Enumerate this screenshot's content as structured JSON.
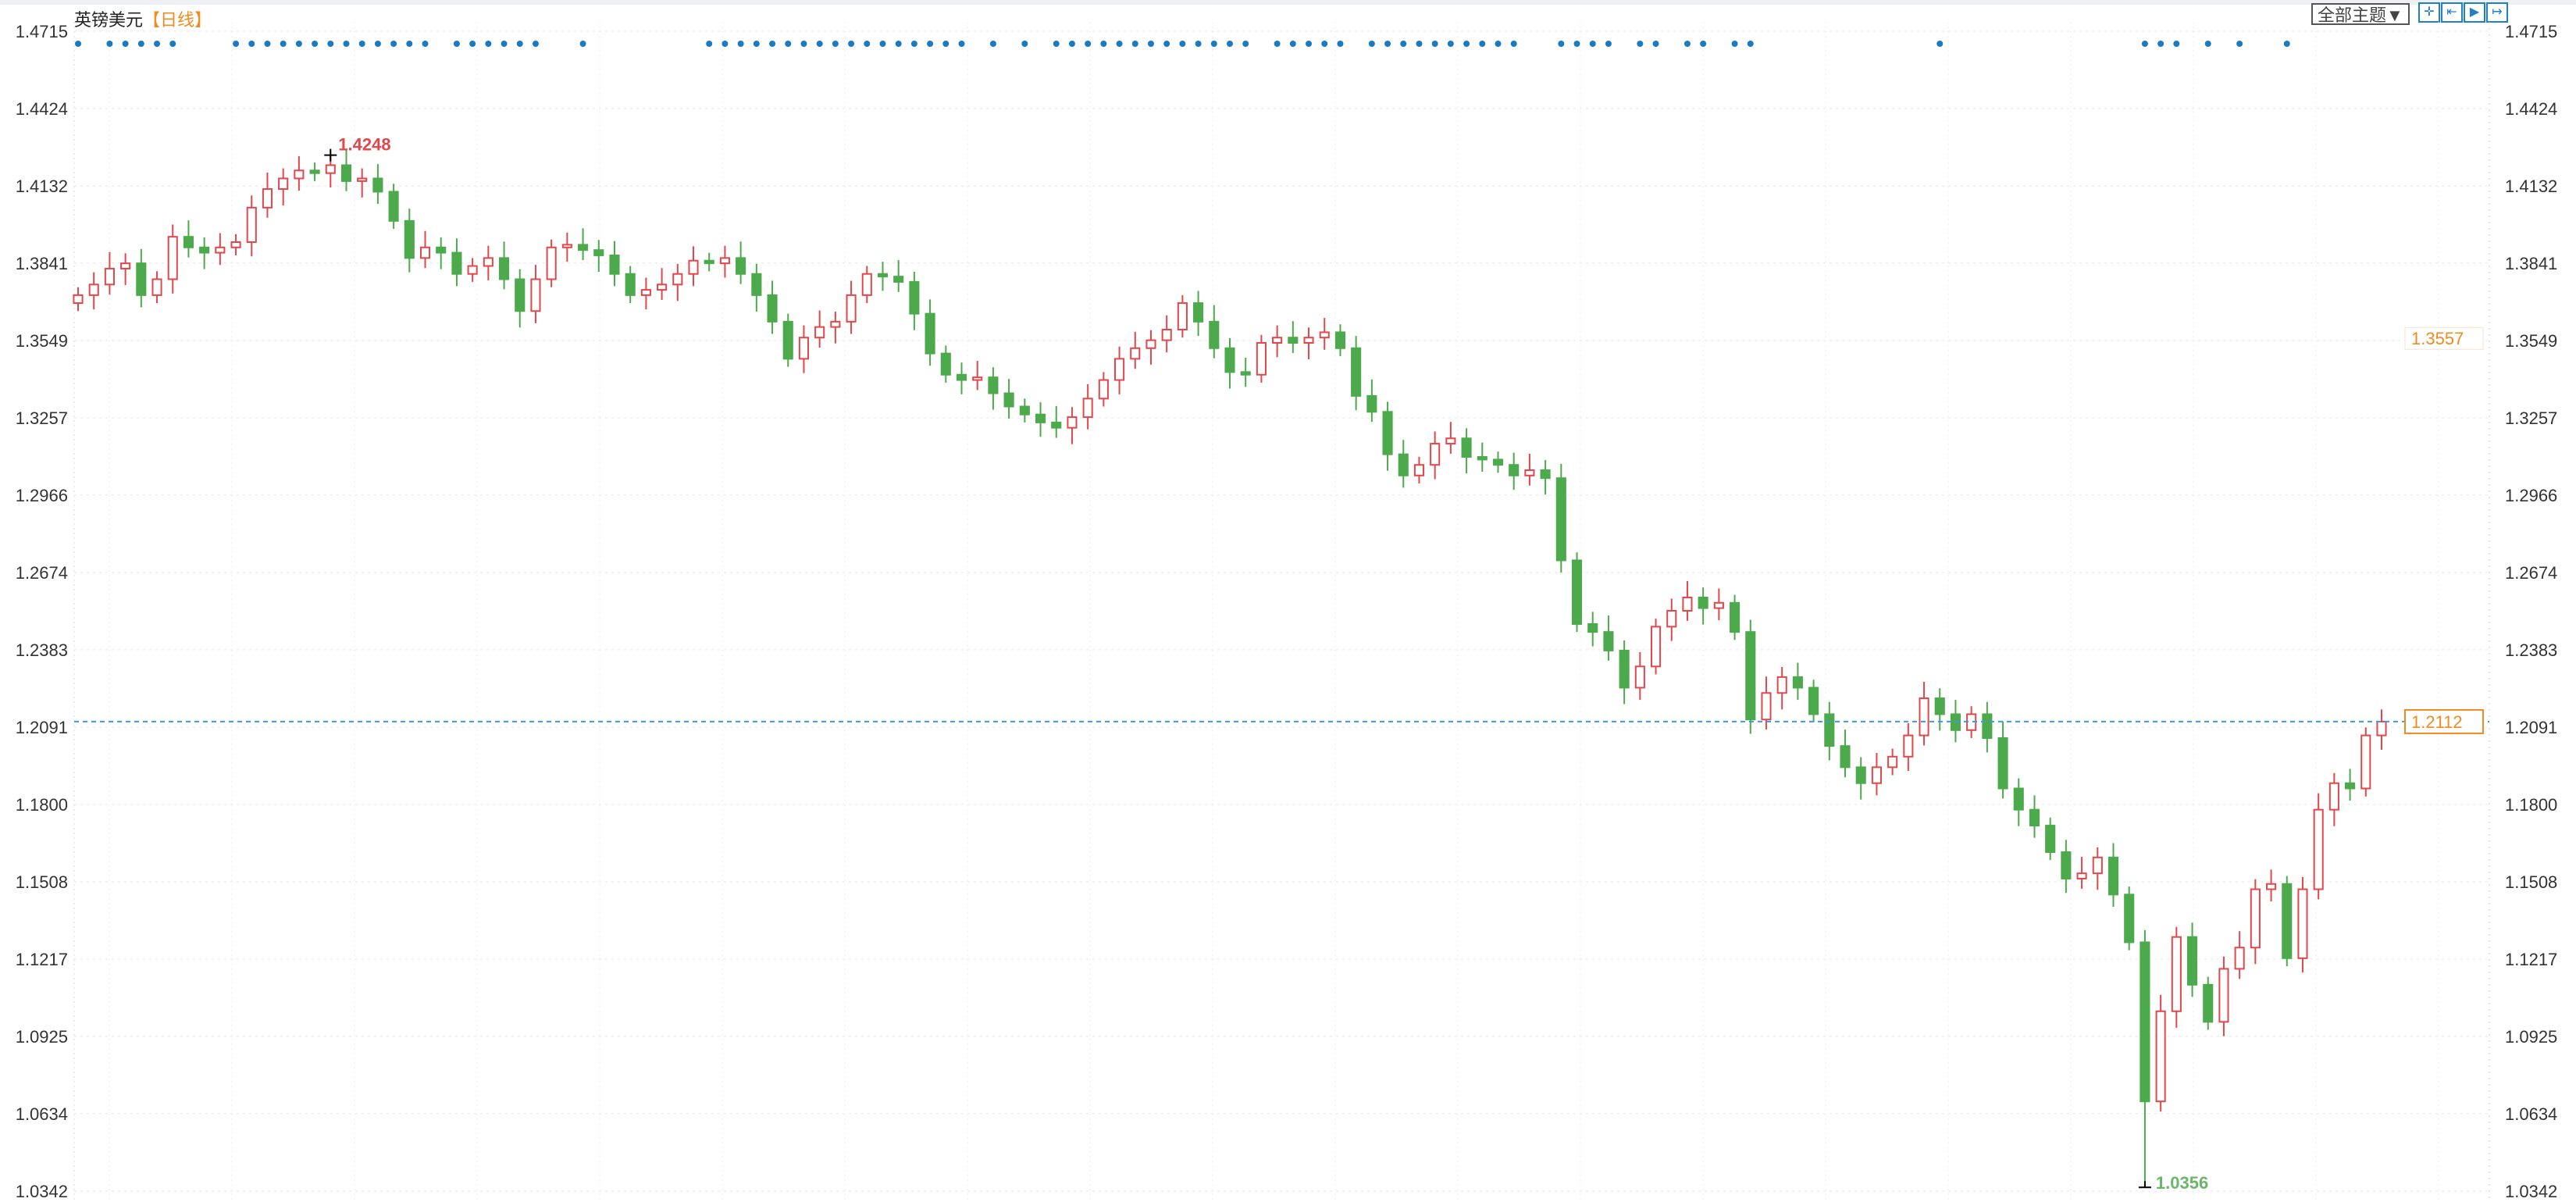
{
  "header": {
    "instrument": "英镑美元",
    "period": "【日线】"
  },
  "toolbar": {
    "theme_select": "全部主题▼",
    "tools": [
      "crosshair-icon",
      "fit-range-icon",
      "play-forward-icon",
      "exit-right-icon"
    ]
  },
  "colors": {
    "up": "#e2474b",
    "down": "#4caa4c",
    "marker": "#1a7bc4",
    "current_line": "#3a9be0",
    "price_label": "#f08c1e"
  },
  "chart_data": {
    "type": "candlestick",
    "title": "英镑美元",
    "y_ticks": [
      "1.4715",
      "1.4424",
      "1.4132",
      "1.3841",
      "1.3549",
      "1.3257",
      "1.2966",
      "1.2674",
      "1.2383",
      "1.2091",
      "1.1800",
      "1.1508",
      "1.1217",
      "1.0925",
      "1.0634",
      "1.0342"
    ],
    "ylim": [
      1.0342,
      1.4715
    ],
    "grid": true,
    "closes": [
      1.372,
      1.376,
      1.382,
      1.384,
      1.372,
      1.378,
      1.394,
      1.39,
      1.388,
      1.39,
      1.392,
      1.405,
      1.412,
      1.416,
      1.419,
      1.418,
      1.421,
      1.415,
      1.416,
      1.411,
      1.4,
      1.386,
      1.39,
      1.388,
      1.38,
      1.383,
      1.386,
      1.378,
      1.366,
      1.378,
      1.39,
      1.391,
      1.389,
      1.387,
      1.38,
      1.372,
      1.374,
      1.376,
      1.38,
      1.385,
      1.384,
      1.386,
      1.38,
      1.372,
      1.362,
      1.348,
      1.356,
      1.36,
      1.362,
      1.372,
      1.38,
      1.379,
      1.377,
      1.365,
      1.35,
      1.342,
      1.34,
      1.341,
      1.335,
      1.33,
      1.327,
      1.324,
      1.322,
      1.326,
      1.333,
      1.34,
      1.348,
      1.352,
      1.355,
      1.359,
      1.369,
      1.362,
      1.352,
      1.343,
      1.342,
      1.354,
      1.356,
      1.354,
      1.356,
      1.358,
      1.352,
      1.334,
      1.328,
      1.312,
      1.304,
      1.308,
      1.316,
      1.318,
      1.311,
      1.31,
      1.308,
      1.304,
      1.306,
      1.303,
      1.272,
      1.248,
      1.245,
      1.238,
      1.224,
      1.232,
      1.247,
      1.253,
      1.258,
      1.254,
      1.256,
      1.245,
      1.212,
      1.222,
      1.228,
      1.224,
      1.214,
      1.202,
      1.194,
      1.188,
      1.194,
      1.198,
      1.206,
      1.22,
      1.214,
      1.208,
      1.214,
      1.205,
      1.186,
      1.178,
      1.172,
      1.162,
      1.152,
      1.154,
      1.16,
      1.146,
      1.128,
      1.068,
      1.102,
      1.13,
      1.112,
      1.098,
      1.118,
      1.126,
      1.148,
      1.15,
      1.122,
      1.148,
      1.178,
      1.188,
      1.186,
      1.206,
      1.2112
    ],
    "max_annotation": {
      "label": "1.4248",
      "value": 1.4248,
      "index": 16
    },
    "min_annotation": {
      "label": "1.0356",
      "value": 1.0356,
      "index": 131
    },
    "current_price": {
      "label": "1.2112",
      "value": 1.2112
    },
    "secondary_price": {
      "label": "1.3557",
      "value": 1.3557
    },
    "event_markers": [
      0,
      2,
      3,
      4,
      5,
      6,
      10,
      11,
      12,
      13,
      14,
      15,
      16,
      17,
      18,
      19,
      20,
      21,
      22,
      24,
      25,
      26,
      27,
      28,
      29,
      32,
      40,
      41,
      42,
      43,
      44,
      45,
      46,
      47,
      48,
      49,
      50,
      51,
      52,
      53,
      54,
      55,
      56,
      58,
      60,
      62,
      63,
      64,
      65,
      66,
      67,
      68,
      69,
      70,
      71,
      72,
      73,
      74,
      76,
      77,
      78,
      79,
      80,
      82,
      83,
      84,
      85,
      86,
      87,
      88,
      89,
      90,
      91,
      94,
      95,
      96,
      97,
      99,
      100,
      102,
      103,
      105,
      106,
      118,
      131,
      132,
      133,
      135,
      137,
      140
    ]
  }
}
